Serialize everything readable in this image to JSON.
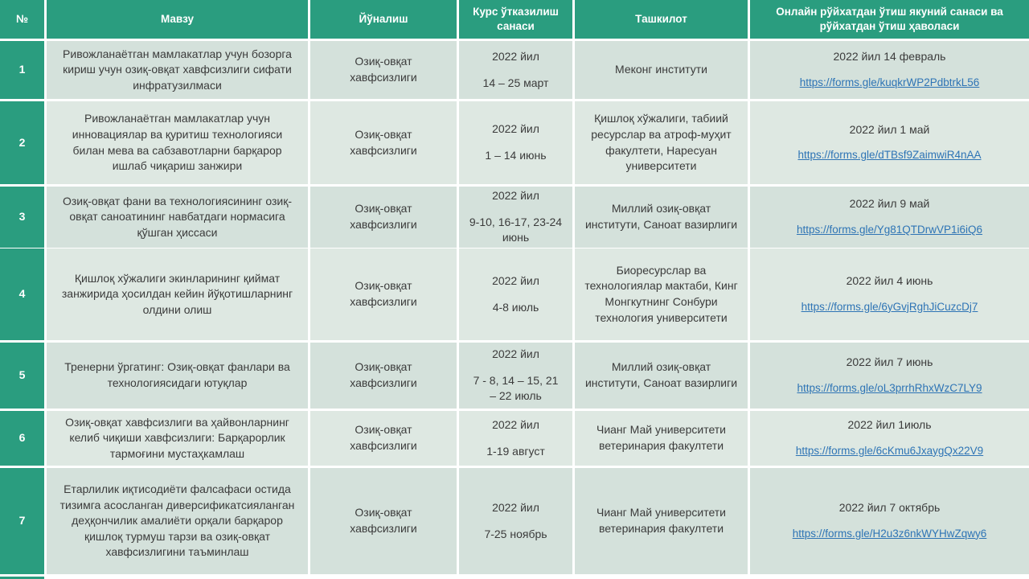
{
  "colors": {
    "header_green": "#2a9d7f",
    "row_band_dark": "#d4e1db",
    "row_band_light": "#dee8e2",
    "link_blue": "#2e74b5"
  },
  "table": {
    "columns": [
      {
        "label": "№"
      },
      {
        "label": "Мавзу"
      },
      {
        "label": "Йўналиш"
      },
      {
        "label": "Курс ўтказилиш санаси"
      },
      {
        "label": "Ташкилот"
      },
      {
        "label": "Онлайн рўйхатдан ўтиш якуний санаси ва рўйхатдан ўтиш ҳаволаси"
      }
    ],
    "rows": [
      {
        "num": "1",
        "topic": "Ривожланаётган мамлакатлар учун бозорга кириш учун озиқ-овқат хавфсизлиги сифати инфратузилмаси",
        "direction": "Озиқ-овқат хавфсизлиги",
        "date_line1": "2022 йил",
        "date_line2": "14 – 25 март",
        "org": "Меконг институти",
        "reg_date": "2022 йил 14 февраль",
        "reg_link": "https://forms.gle/kuqkrWP2PdbtrkL56"
      },
      {
        "num": "2",
        "topic": "Ривожланаётган мамлакатлар учун инновациялар ва қуритиш технологияси билан мева ва сабзавотларни барқарор ишлаб чиқариш занжири",
        "direction": "Озиқ-овқат хавфсизлиги",
        "date_line1": "2022 йил",
        "date_line2": "1 – 14 июнь",
        "org": "Қишлоқ хўжалиги, табиий ресурслар ва атроф-муҳит факултети, Наресуан университети",
        "reg_date": "2022 йил 1 май",
        "reg_link": "https://forms.gle/dTBsf9ZaimwiR4nAA"
      },
      {
        "num": "3",
        "topic": "Озиқ-овқат фани ва технологиясининг озиқ-овқат саноатининг навбатдаги нормасига қўшган ҳиссаси",
        "direction": "Озиқ-овқат хавфсизлиги",
        "date_line1": "2022 йил",
        "date_line2": "9-10, 16-17, 23-24 июнь",
        "org": "Миллий озиқ-овқат институти, Саноат вазирлиги",
        "reg_date": "2022 йил 9 май",
        "reg_link": "https://forms.gle/Yg81QTDrwVP1i6iQ6"
      },
      {
        "num": "4",
        "topic": "Қишлоқ хўжалиги экинларининг қиймат занжирида ҳосилдан кейин йўқотишларнинг олдини олиш",
        "direction": "Озиқ-овқат хавфсизлиги",
        "date_line1": "2022 йил",
        "date_line2": "4-8 июль",
        "org": "Биоресурслар ва технологиялар мактаби, Кинг Монгкутнинг Сонбури технология университети",
        "reg_date": "2022 йил 4 июнь",
        "reg_link": "https://forms.gle/6yGvjRghJiCuzcDj7"
      },
      {
        "num": "5",
        "topic": "Тренерни ўргатинг: Озиқ-овқат фанлари ва технологиясидаги ютуқлар",
        "direction": "Озиқ-овқат хавфсизлиги",
        "date_line1": "2022 йил",
        "date_line2": "7 - 8, 14 – 15, 21 – 22 июль",
        "org": "Миллий озиқ-овқат институти, Саноат вазирлиги",
        "reg_date": "2022 йил 7 июнь",
        "reg_link": "https://forms.gle/oL3prrhRhxWzC7LY9"
      },
      {
        "num": "6",
        "topic": "Озиқ-овқат хавфсизлиги ва ҳайвонларнинг келиб чиқиши хавфсизлиги: Барқарорлик тармоғини мустаҳкамлаш",
        "direction": "Озиқ-овқат хавфсизлиги",
        "date_line1": "2022 йил",
        "date_line2": "1-19 август",
        "org": "Чианг Май университети ветеринария факултети",
        "reg_date": "2022 йил 1июль",
        "reg_link": "https://forms.gle/6cKmu6JxaygQx22V9"
      },
      {
        "num": "7",
        "topic": "Етарлилик иқтисодиёти фалсафаси остида тизимга асосланган диверсификатсияланган деҳқончилик амалиёти орқали барқарор қишлоқ турмуш тарзи ва озиқ-овқат хавфсизлигини таъминлаш",
        "direction": "Озиқ-овқат хавфсизлиги",
        "date_line1": "2022 йил",
        "date_line2": "7-25 ноябрь",
        "org": "Чианг Май университети ветеринария факултети",
        "reg_date": "2022 йил 7 октябрь",
        "reg_link": "https://forms.gle/H2u3z6nkWYHwZqwy6"
      }
    ]
  }
}
